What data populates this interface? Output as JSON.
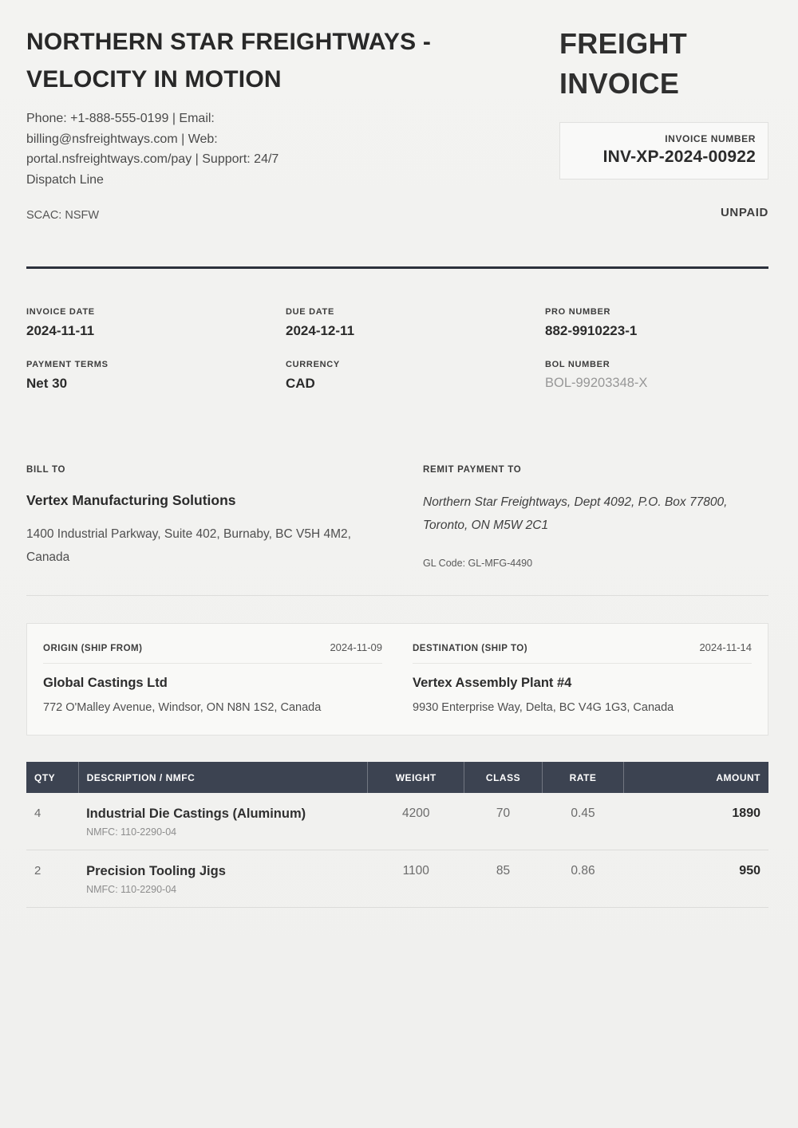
{
  "company": {
    "name": "NORTHERN STAR FREIGHTWAYS - VELOCITY IN MOTION",
    "contact_lines": [
      "Phone: +1-888-555-0199 | Email:",
      "billing@nsfreightways.com | Web:",
      "portal.nsfreightways.com/pay | Support: 24/7",
      "Dispatch Line"
    ],
    "scac": "SCAC: NSFW"
  },
  "doc": {
    "title": "FREIGHT INVOICE",
    "invoice_number_label": "INVOICE NUMBER",
    "invoice_number": "INV-XP-2024-00922",
    "status": "UNPAID"
  },
  "meta": {
    "fields": [
      {
        "label": "INVOICE DATE",
        "value": "2024-11-11"
      },
      {
        "label": "DUE DATE",
        "value": "2024-12-11"
      },
      {
        "label": "PRO NUMBER",
        "value": "882-9910223-1"
      },
      {
        "label": "PAYMENT TERMS",
        "value": "Net 30"
      },
      {
        "label": "CURRENCY",
        "value": "CAD"
      },
      {
        "label": "BOL NUMBER",
        "value": "BOL-99203348-X"
      }
    ]
  },
  "billing": {
    "bill_to_label": "BILL TO",
    "bill_to_name": "Vertex Manufacturing Solutions",
    "bill_to_address": "1400 Industrial Parkway, Suite 402, Burnaby, BC V5H 4M2, Canada",
    "remit_label": "REMIT PAYMENT TO",
    "remit_address": "Northern Star Freightways, Dept 4092, P.O. Box 77800, Toronto, ON M5W 2C1",
    "gl_code": "GL Code: GL-MFG-4490"
  },
  "shipment": {
    "origin": {
      "label": "ORIGIN (SHIP FROM)",
      "date": "2024-11-09",
      "name": "Global Castings Ltd",
      "address": "772 O'Malley Avenue, Windsor, ON N8N 1S2, Canada"
    },
    "destination": {
      "label": "DESTINATION (SHIP TO)",
      "date": "2024-11-14",
      "name": "Vertex Assembly Plant #4",
      "address": "9930 Enterprise Way, Delta, BC V4G 1G3, Canada"
    }
  },
  "line_items": {
    "headers": [
      "QTY",
      "DESCRIPTION / NMFC",
      "WEIGHT",
      "CLASS",
      "RATE",
      "AMOUNT"
    ],
    "rows": [
      {
        "qty": "4",
        "description": "Industrial Die Castings (Aluminum)",
        "nmfc": "NMFC: 110-2290-04",
        "weight": "4200",
        "class": "70",
        "rate": "0.45",
        "amount": "1890"
      },
      {
        "qty": "2",
        "description": "Precision Tooling Jigs",
        "nmfc": "NMFC: 110-2290-04",
        "weight": "1100",
        "class": "85",
        "rate": "0.86",
        "amount": "950"
      }
    ]
  },
  "colors": {
    "page_bg": "#f1f1ef",
    "table_header_bg": "#3c4351",
    "rule_dark": "#2c313c",
    "box_bg": "#f9f9f7",
    "text_primary": "#2b2b2b",
    "text_muted": "#6b6b6b",
    "bol_value": "#979797"
  }
}
